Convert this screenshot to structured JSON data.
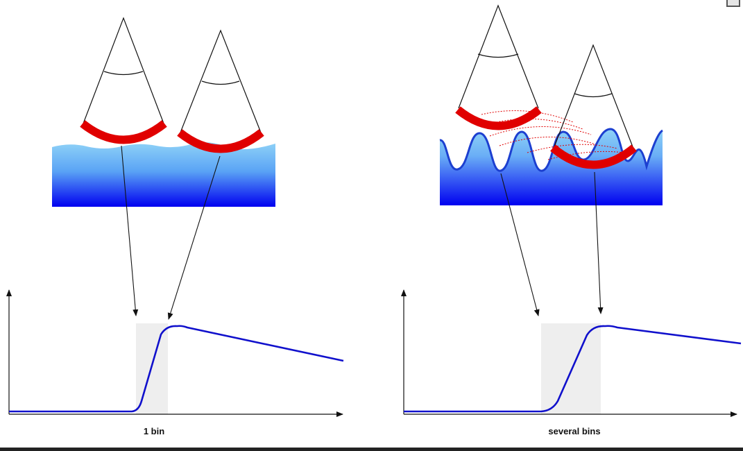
{
  "panels": {
    "left": {
      "caption": "1 bin"
    },
    "right": {
      "caption": "several bins"
    }
  },
  "colors": {
    "beam": "#e00000",
    "echo_curve": "#1010cc",
    "wave_line": "#1c3fd0",
    "water_top": "#8fd2f7",
    "water_bottom": "#0000f0",
    "bin_shade": "#eeeeee"
  }
}
